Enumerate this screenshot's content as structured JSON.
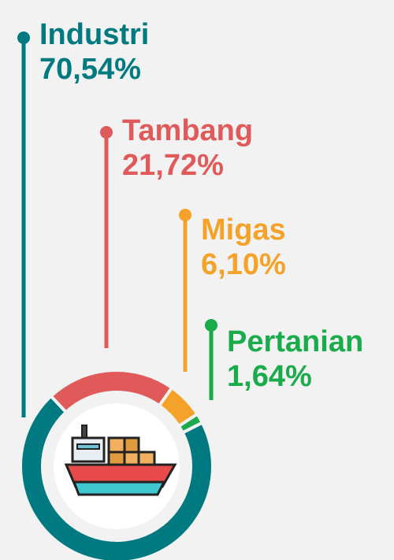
{
  "chart_data": {
    "type": "donut",
    "categories": [
      "Industri",
      "Tambang",
      "Migas",
      "Pertanian"
    ],
    "values": [
      70.54,
      21.72,
      6.1,
      1.64
    ],
    "value_labels": [
      "70,54%",
      "21,72%",
      "6,10%",
      "1,64%"
    ],
    "colors": [
      "#007a80",
      "#e05a5a",
      "#f5a22a",
      "#1aab4b"
    ]
  }
}
